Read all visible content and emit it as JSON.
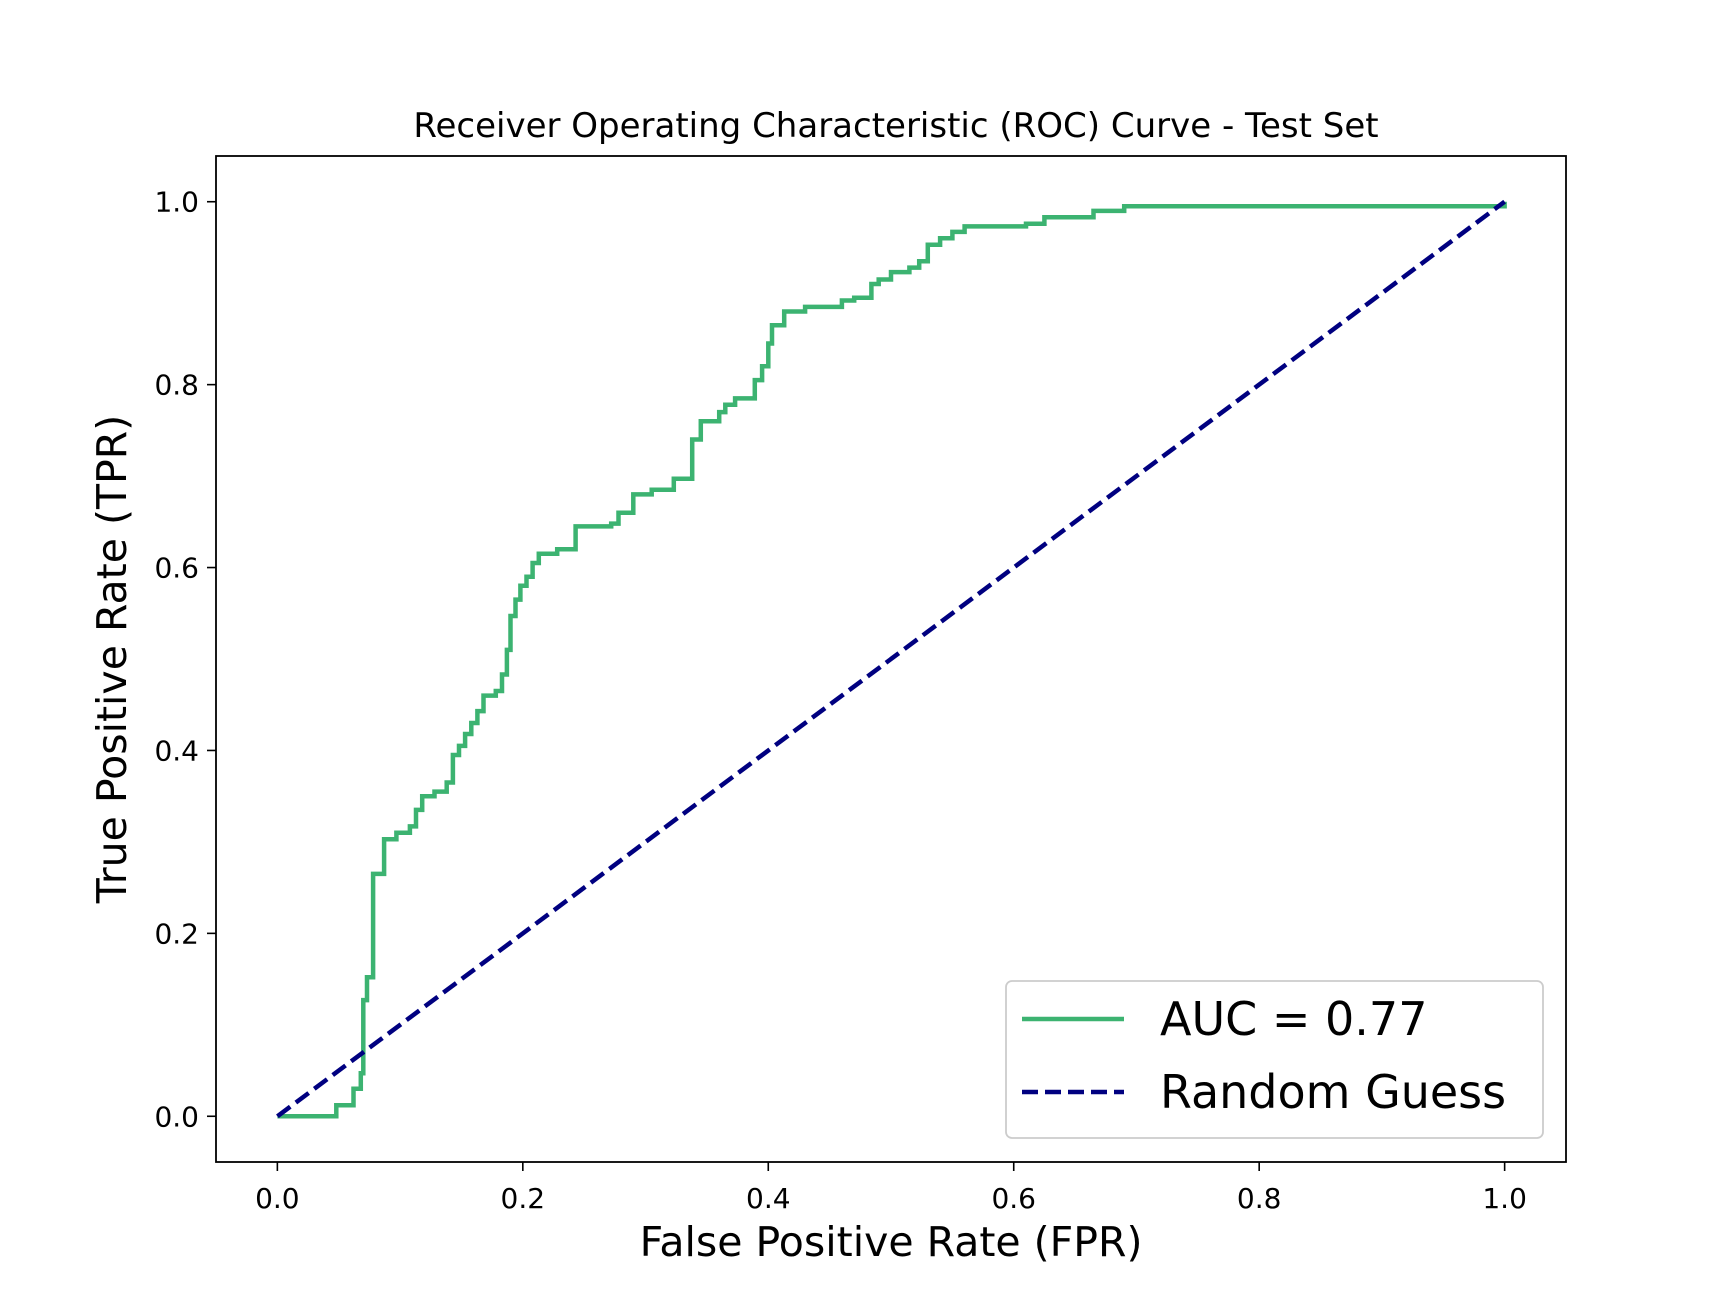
{
  "chart_data": {
    "type": "line",
    "title": "Receiver Operating Characteristic (ROC) Curve - Test Set",
    "xlabel": "False Positive Rate (FPR)",
    "ylabel": "True Positive Rate (TPR)",
    "xlim": [
      -0.05,
      1.05
    ],
    "ylim": [
      -0.05,
      1.05
    ],
    "xticks": [
      "0.0",
      "0.2",
      "0.4",
      "0.6",
      "0.8",
      "1.0"
    ],
    "yticks": [
      "0.0",
      "0.2",
      "0.4",
      "0.6",
      "0.8",
      "1.0"
    ],
    "grid": false,
    "legend_position": "lower right",
    "series": [
      {
        "name": "AUC = 0.77",
        "color": "#3cb371",
        "style": "solid",
        "step": true,
        "x": [
          0.0,
          0.048,
          0.062,
          0.068,
          0.07,
          0.073,
          0.078,
          0.087,
          0.097,
          0.108,
          0.113,
          0.118,
          0.128,
          0.138,
          0.143,
          0.148,
          0.153,
          0.158,
          0.163,
          0.168,
          0.178,
          0.183,
          0.187,
          0.19,
          0.194,
          0.198,
          0.203,
          0.208,
          0.213,
          0.228,
          0.243,
          0.272,
          0.278,
          0.29,
          0.305,
          0.323,
          0.338,
          0.345,
          0.36,
          0.365,
          0.373,
          0.389,
          0.395,
          0.4,
          0.403,
          0.413,
          0.43,
          0.46,
          0.47,
          0.484,
          0.49,
          0.5,
          0.515,
          0.523,
          0.53,
          0.54,
          0.55,
          0.56,
          0.61,
          0.625,
          0.665,
          0.69,
          1.0
        ],
        "y": [
          0.0,
          0.012,
          0.03,
          0.047,
          0.127,
          0.152,
          0.265,
          0.303,
          0.31,
          0.317,
          0.335,
          0.35,
          0.355,
          0.365,
          0.395,
          0.405,
          0.418,
          0.43,
          0.443,
          0.46,
          0.465,
          0.483,
          0.51,
          0.547,
          0.565,
          0.58,
          0.59,
          0.605,
          0.615,
          0.62,
          0.645,
          0.648,
          0.66,
          0.68,
          0.685,
          0.697,
          0.74,
          0.76,
          0.77,
          0.778,
          0.785,
          0.805,
          0.82,
          0.845,
          0.865,
          0.88,
          0.885,
          0.892,
          0.895,
          0.91,
          0.915,
          0.923,
          0.928,
          0.935,
          0.953,
          0.96,
          0.967,
          0.973,
          0.976,
          0.983,
          0.99,
          0.995,
          1.0
        ]
      },
      {
        "name": "Random Guess",
        "color": "#000080",
        "style": "dashed",
        "step": false,
        "x": [
          0.0,
          1.0
        ],
        "y": [
          0.0,
          1.0
        ]
      }
    ]
  }
}
